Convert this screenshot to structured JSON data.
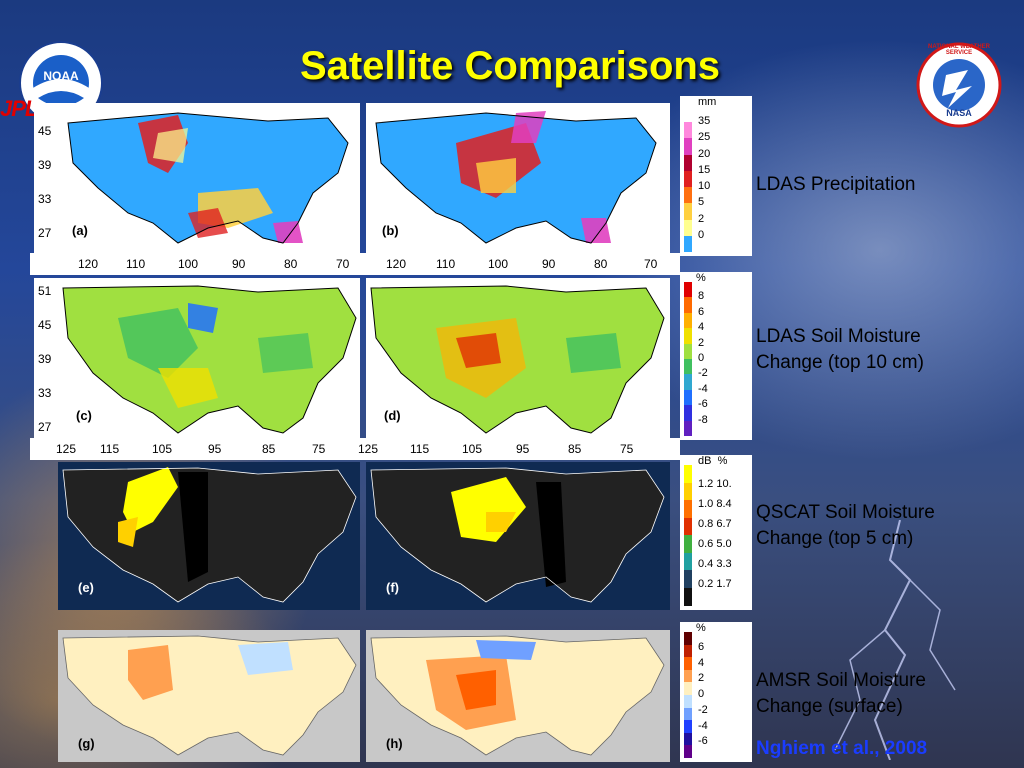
{
  "title": "Satellite Comparisons",
  "logos": {
    "noaa_text": "NOAA",
    "nws_text": "NATIONAL WEATHER SERVICE",
    "nasa_text": "NASA",
    "jpl_text": "JPL"
  },
  "rows": [
    {
      "label": "LDAS Precipitation",
      "unit": "mm",
      "scale": [
        "35",
        "25",
        "20",
        "15",
        "10",
        "5",
        "2",
        "0"
      ],
      "colors": [
        "#ffffff",
        "#ff88dd",
        "#e040c0",
        "#b00030",
        "#e02020",
        "#ff7010",
        "#ffd040",
        "#ffff90",
        "#30a8ff"
      ],
      "panels": [
        "(a)",
        "(b)"
      ],
      "lat": [
        "45",
        "39",
        "33",
        "27"
      ],
      "lon": [
        "120",
        "110",
        "100",
        "90",
        "80",
        "70"
      ]
    },
    {
      "label": "LDAS Soil Moisture Change (top 10 cm)",
      "unit": "%",
      "scale": [
        "8",
        "6",
        "4",
        "2",
        "0",
        "-2",
        "-4",
        "-6",
        "-8"
      ],
      "colors": [
        "#e00000",
        "#ff6a00",
        "#ffb000",
        "#f0e000",
        "#a0e040",
        "#40c060",
        "#30a8d0",
        "#2070ff",
        "#3030e0",
        "#6020c0"
      ],
      "panels": [
        "(c)",
        "(d)"
      ],
      "lat": [
        "51",
        "45",
        "39",
        "33",
        "27"
      ],
      "lon": [
        "125",
        "115",
        "105",
        "95",
        "85",
        "75",
        "125",
        "115",
        "105",
        "95",
        "85",
        "75"
      ]
    },
    {
      "label": "QSCAT Soil Moisture Change (top 5 cm)",
      "unit": "dB  %",
      "scale": [
        "1.2 10.",
        "1.0 8.4",
        "0.8 6.7",
        "0.6 5.0",
        "0.4 3.3",
        "0.2 1.7"
      ],
      "colors": [
        "#ffff00",
        "#ffd000",
        "#ff7000",
        "#e03000",
        "#40b040",
        "#20a0a0",
        "#204060",
        "#101010"
      ],
      "panels": [
        "(e)",
        "(f)"
      ]
    },
    {
      "label": "AMSR Soil Moisture Change (surface)",
      "unit": "%",
      "scale": [
        "6",
        "4",
        "2",
        "0",
        "-2",
        "-4",
        "-6"
      ],
      "colors": [
        "#600000",
        "#c02000",
        "#ff6000",
        "#ffa050",
        "#fff0c0",
        "#c0e0ff",
        "#70a0ff",
        "#2040ff",
        "#2010a0",
        "#60008a"
      ],
      "panels": [
        "(g)",
        "(h)"
      ]
    }
  ],
  "citation": "Nghiem et al., 2008"
}
